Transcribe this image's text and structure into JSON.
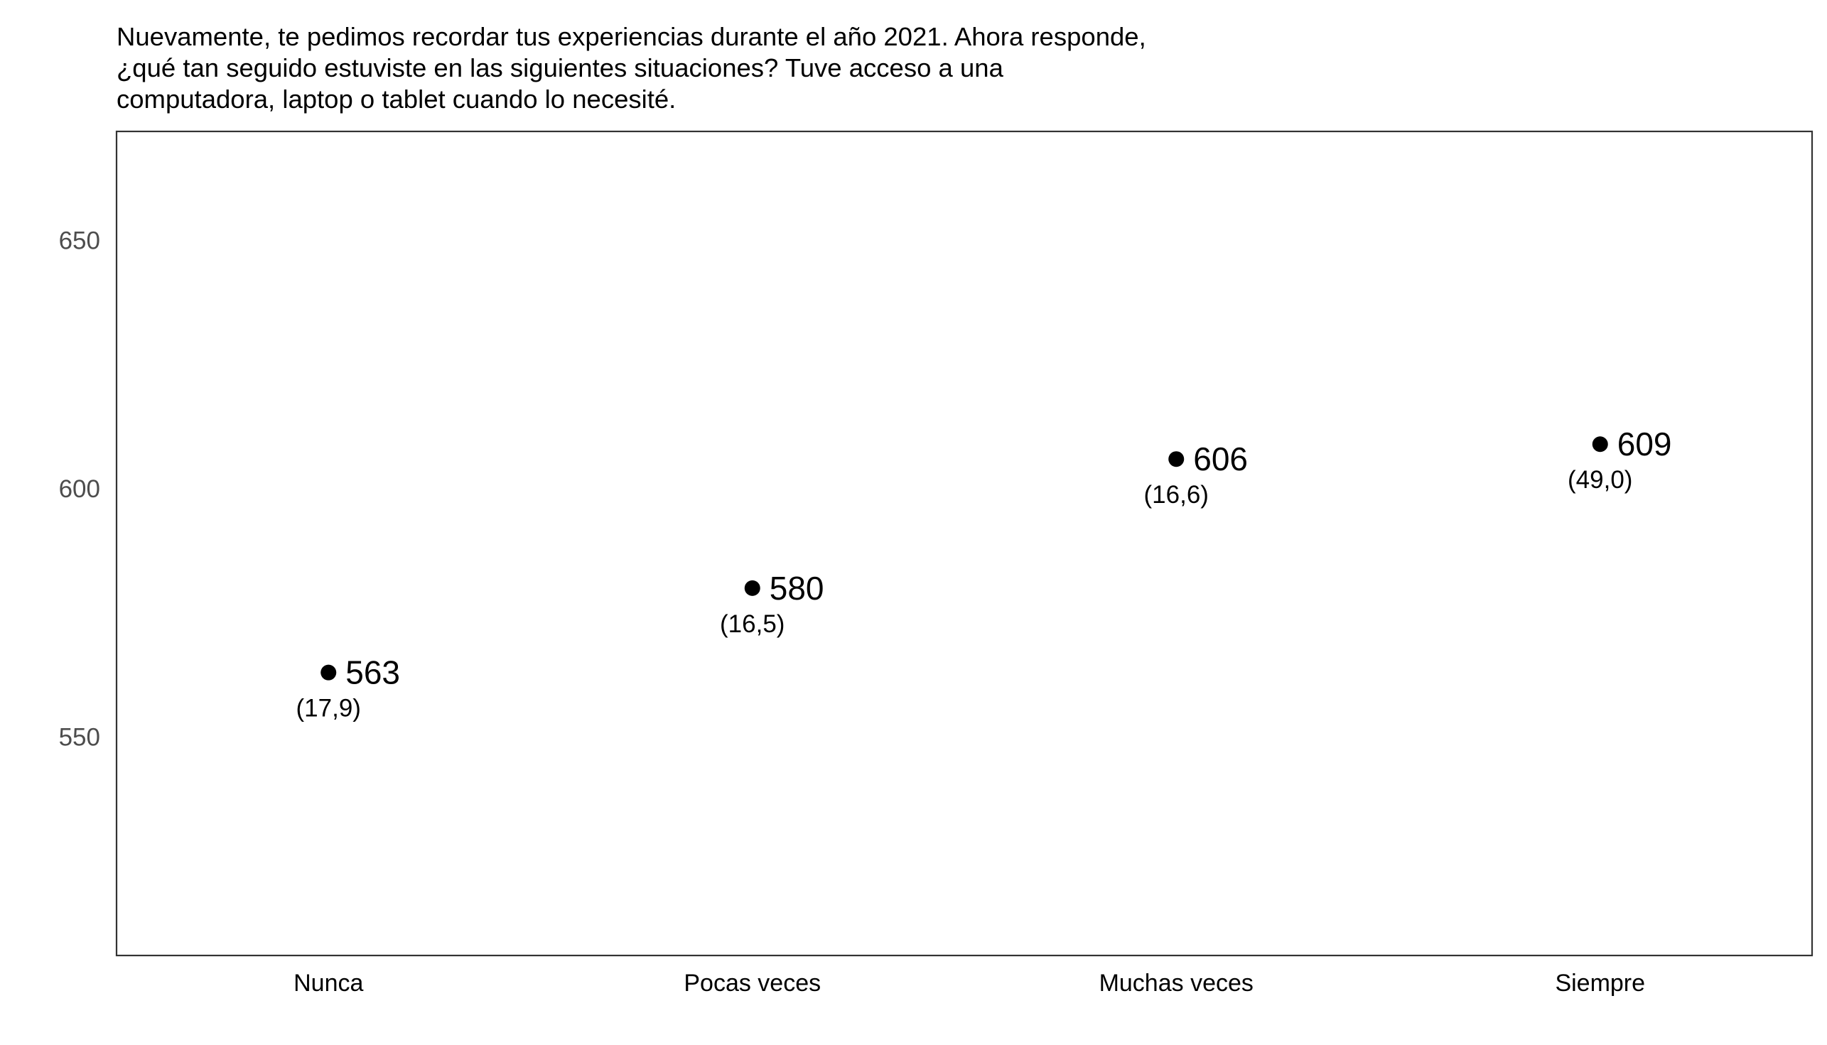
{
  "chart_data": {
    "type": "scatter",
    "title": "Nuevamente, te pedimos recordar tus experiencias durante el año 2021. Ahora responde, ¿qué tan seguido estuviste en las siguientes situaciones? Tuve acceso a una computadora, laptop o tablet cuando lo necesité.",
    "xlabel": "",
    "ylabel": "",
    "categories": [
      "Nunca",
      "Pocas veces",
      "Muchas veces",
      "Siempre"
    ],
    "values": [
      563,
      580,
      606,
      609
    ],
    "value_labels": [
      "563",
      "580",
      "606",
      "609"
    ],
    "se_labels": [
      "(17,9)",
      "(16,5)",
      "(16,6)",
      "(49,0)"
    ],
    "ylim": [
      506,
      672
    ],
    "yticks": [
      550,
      600,
      650
    ],
    "ytick_labels": [
      "550",
      "600",
      "650"
    ],
    "grid": false,
    "legend": "none",
    "colors": {
      "point": "#000000",
      "panel_border": "#333333",
      "tick_text": "#4d4d4d"
    }
  }
}
